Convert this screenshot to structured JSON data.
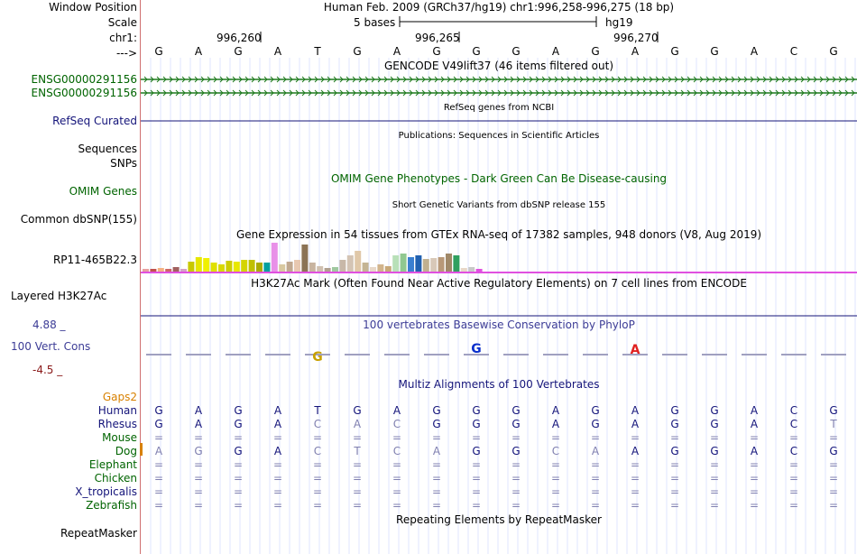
{
  "header": {
    "window_position_label": "Window Position",
    "window_position_value": "Human Feb. 2009 (GRCh37/hg19)   chr1:996,258-996,275 (18 bp)",
    "scale_label": "Scale",
    "scale_text": "5 bases",
    "scale_assembly": "hg19",
    "chrom_label": "chr1:",
    "positions": [
      "996,260",
      "996,265",
      "996,270"
    ],
    "strand_label": "--->",
    "bases": [
      "G",
      "A",
      "G",
      "A",
      "T",
      "G",
      "A",
      "G",
      "G",
      "G",
      "A",
      "G",
      "A",
      "G",
      "G",
      "A",
      "C",
      "G"
    ]
  },
  "gencode": {
    "title": "GENCODE V49lift37 (46 items filtered out)",
    "items": [
      "ENSG00000291156",
      "ENSG00000291156"
    ],
    "color": "#1e7a1e"
  },
  "refseq": {
    "label": "RefSeq Curated",
    "title": "RefSeq genes from NCBI",
    "color": "#14147a"
  },
  "publications": {
    "title": "Publications: Sequences in Scientific Articles",
    "label": "Sequences"
  },
  "snps": {
    "label": "SNPs"
  },
  "omim": {
    "title": "OMIM Gene Phenotypes - Dark Green Can Be Disease-causing",
    "label": "OMIM Genes",
    "color": "#006400"
  },
  "dbsnp": {
    "title": "Short Genetic Variants from dbSNP release 155",
    "label": "Common dbSNP(155)"
  },
  "gtex": {
    "title": "Gene Expression in 54 tissues from GTEx RNA-seq of 17382 samples, 948 donors (V8, Aug 2019)",
    "label": "RP11-465B22.3",
    "bar_colors": [
      "#e8a0a0",
      "#c0504d",
      "#f4b183",
      "#cc6666",
      "#a06060",
      "#d4a0c8",
      "#c8c800",
      "#e6e600",
      "#f0f000",
      "#e0e000",
      "#d8d800",
      "#cccc00",
      "#e8e800",
      "#d4d400",
      "#c0c000",
      "#aaaa00",
      "#00a0a0",
      "#e890e8",
      "#d8c8a0",
      "#c0a890",
      "#e8c8b0",
      "#8b7355",
      "#c8b4a0",
      "#d0c0b0",
      "#b0a090",
      "#a0c8a0",
      "#c8b8a8",
      "#d4c4b4",
      "#e0c8a8",
      "#c4b494",
      "#e8d8c8",
      "#d2b48c",
      "#c8a878",
      "#b8e0b8",
      "#90c890",
      "#3a7fd0",
      "#2060b0",
      "#c0b090",
      "#d8c8b8",
      "#b89878",
      "#a08868",
      "#30a060",
      "#e8d8c8",
      "#c8c8c8",
      "#e050e0"
    ],
    "bar_values": [
      0.08,
      0.1,
      0.12,
      0.08,
      0.15,
      0.1,
      0.35,
      0.5,
      0.48,
      0.3,
      0.25,
      0.38,
      0.35,
      0.4,
      0.42,
      0.32,
      0.3,
      1.0,
      0.25,
      0.35,
      0.4,
      0.95,
      0.3,
      0.2,
      0.12,
      0.15,
      0.4,
      0.55,
      0.72,
      0.3,
      0.15,
      0.25,
      0.2,
      0.55,
      0.62,
      0.5,
      0.55,
      0.45,
      0.48,
      0.5,
      0.62,
      0.55,
      0.12,
      0.15,
      0.1
    ]
  },
  "h3k27ac": {
    "title": "H3K27Ac Mark (Often Found Near Active Regulatory Elements) on 7 cell lines from ENCODE",
    "label": "Layered H3K27Ac"
  },
  "phylop": {
    "title": "100 vertebrates Basewise Conservation by PhyloP",
    "label": "100 Vert. Cons",
    "ymax": "4.88 _",
    "ymin": "-4.5 _",
    "title_color": "#3c3c96"
  },
  "multiz": {
    "title": "Multiz Alignments of 100 Vertebrates",
    "gaps_label": "Gaps2",
    "species": [
      {
        "name": "Human",
        "color": "#14147a",
        "row": [
          "G",
          "A",
          "G",
          "A",
          "T",
          "G",
          "A",
          "G",
          "G",
          "G",
          "A",
          "G",
          "A",
          "G",
          "G",
          "A",
          "C",
          "G"
        ]
      },
      {
        "name": "Rhesus",
        "color": "#14147a",
        "row": [
          "G",
          "A",
          "G",
          "A",
          "C",
          "A",
          "C",
          "G",
          "G",
          "G",
          "A",
          "G",
          "A",
          "G",
          "G",
          "A",
          "C",
          "T"
        ]
      },
      {
        "name": "Mouse",
        "color": "#006400",
        "row": [
          "=",
          "=",
          "=",
          "=",
          "=",
          "=",
          "=",
          "=",
          "=",
          "=",
          "=",
          "=",
          "=",
          "=",
          "=",
          "=",
          "=",
          "="
        ]
      },
      {
        "name": "Dog",
        "color": "#006400",
        "row": [
          "A",
          "G",
          "G",
          "A",
          "C",
          "T",
          "C",
          "A",
          "G",
          "G",
          "C",
          "A",
          "A",
          "G",
          "G",
          "A",
          "C",
          "G"
        ]
      },
      {
        "name": "Elephant",
        "color": "#006400",
        "row": [
          "=",
          "=",
          "=",
          "=",
          "=",
          "=",
          "=",
          "=",
          "=",
          "=",
          "=",
          "=",
          "=",
          "=",
          "=",
          "=",
          "=",
          "="
        ]
      },
      {
        "name": "Chicken",
        "color": "#006400",
        "row": [
          "=",
          "=",
          "=",
          "=",
          "=",
          "=",
          "=",
          "=",
          "=",
          "=",
          "=",
          "=",
          "=",
          "=",
          "=",
          "=",
          "=",
          "="
        ]
      },
      {
        "name": "X_tropicalis",
        "color": "#14147a",
        "row": [
          "=",
          "=",
          "=",
          "=",
          "=",
          "=",
          "=",
          "=",
          "=",
          "=",
          "=",
          "=",
          "=",
          "=",
          "=",
          "=",
          "=",
          "="
        ]
      },
      {
        "name": "Zebrafish",
        "color": "#006400",
        "row": [
          "=",
          "=",
          "=",
          "=",
          "=",
          "=",
          "=",
          "=",
          "=",
          "=",
          "=",
          "=",
          "=",
          "=",
          "=",
          "=",
          "=",
          "="
        ]
      }
    ]
  },
  "repeatmasker": {
    "title": "Repeating Elements by RepeatMasker",
    "label": "RepeatMasker"
  }
}
